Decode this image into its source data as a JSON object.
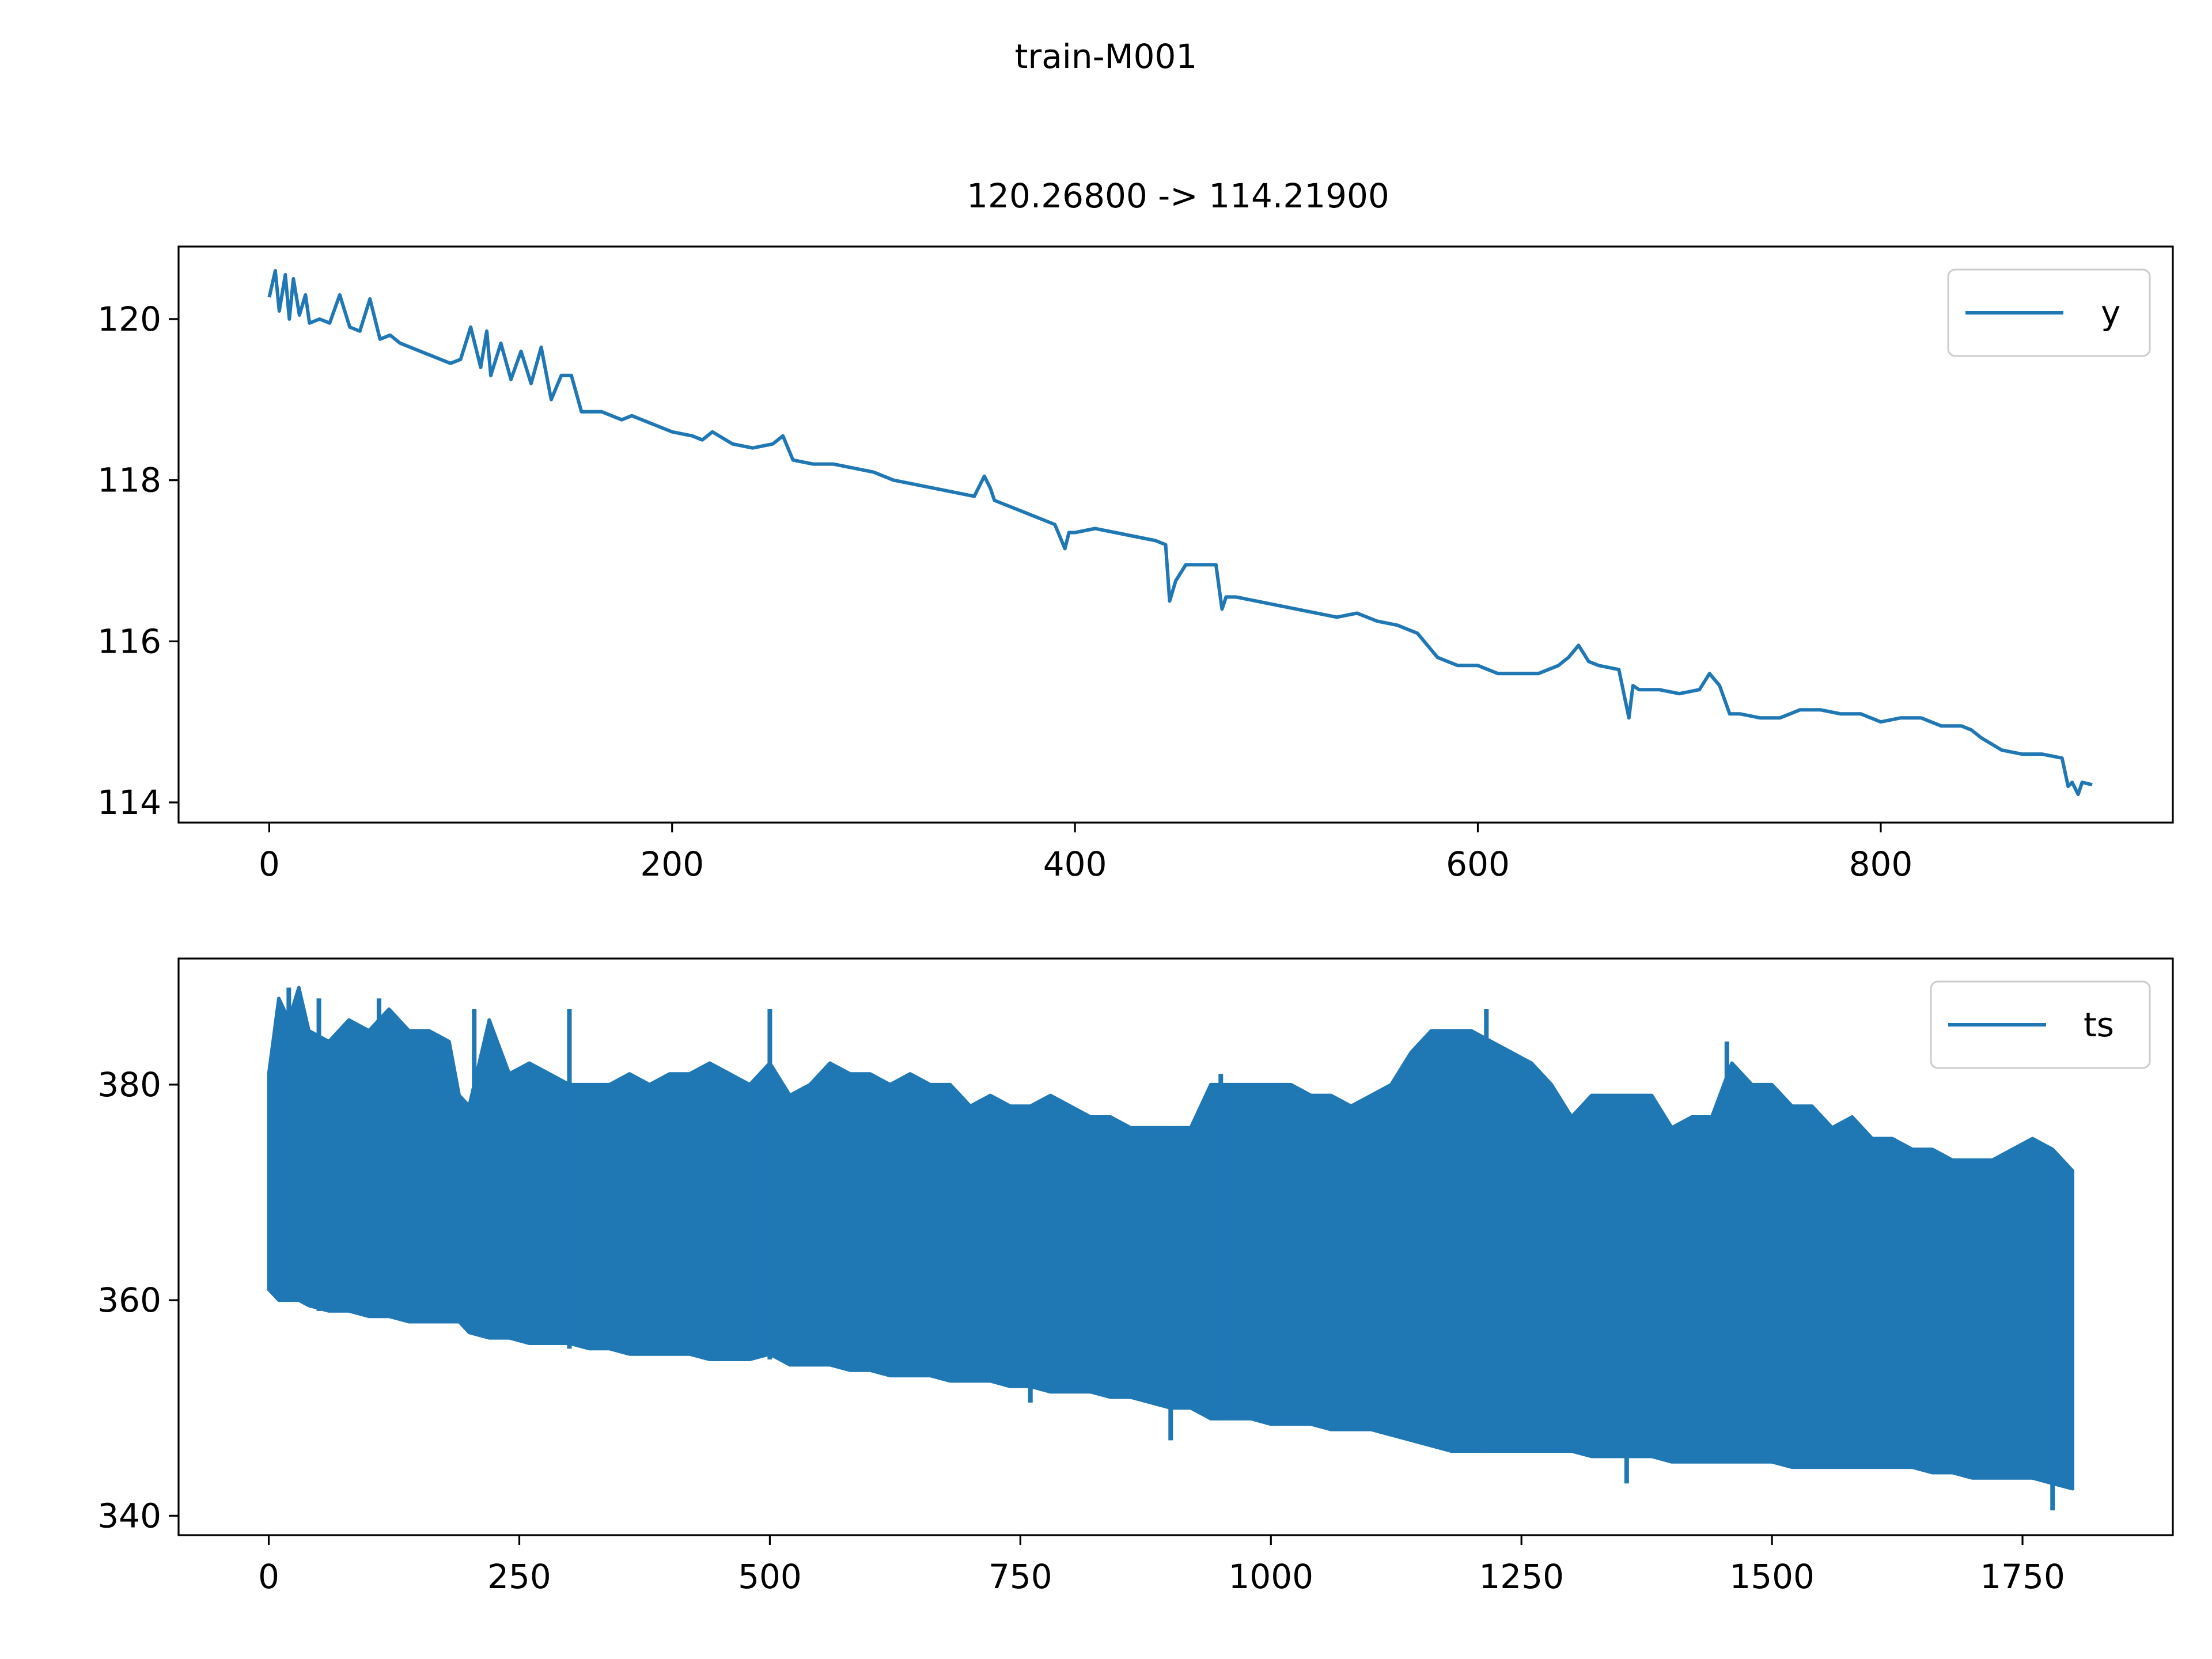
{
  "figure": {
    "suptitle": "train-M001",
    "colors": {
      "line": "#1f77b4",
      "axes": "#000000",
      "legend_border": "#cccccc",
      "background": "#ffffff"
    }
  },
  "chart_data": [
    {
      "type": "line",
      "title": "120.26800 -> 114.21900",
      "xlabel": "",
      "ylabel": "",
      "xlim": [
        -45,
        945
      ],
      "ylim": [
        113.75,
        120.9
      ],
      "xticks": [
        0,
        200,
        400,
        600,
        800
      ],
      "yticks": [
        114,
        116,
        118,
        120
      ],
      "legend": "upper right",
      "grid": false,
      "series": [
        {
          "name": "y",
          "x": [
            0,
            3,
            5,
            8,
            10,
            12,
            15,
            18,
            20,
            25,
            30,
            35,
            40,
            45,
            50,
            55,
            60,
            65,
            70,
            75,
            80,
            85,
            90,
            95,
            100,
            105,
            108,
            110,
            115,
            120,
            125,
            130,
            135,
            140,
            145,
            150,
            155,
            160,
            165,
            170,
            175,
            180,
            190,
            200,
            210,
            215,
            220,
            230,
            240,
            250,
            255,
            260,
            270,
            280,
            290,
            300,
            310,
            320,
            330,
            340,
            350,
            355,
            358,
            360,
            365,
            370,
            380,
            390,
            395,
            397,
            400,
            410,
            420,
            430,
            440,
            445,
            447,
            450,
            455,
            460,
            470,
            473,
            475,
            480,
            490,
            500,
            510,
            520,
            530,
            540,
            550,
            560,
            570,
            580,
            590,
            600,
            610,
            620,
            630,
            640,
            645,
            650,
            655,
            660,
            670,
            675,
            677,
            680,
            690,
            700,
            710,
            715,
            720,
            725,
            730,
            740,
            750,
            760,
            770,
            780,
            790,
            800,
            810,
            820,
            830,
            840,
            845,
            850,
            860,
            870,
            880,
            890,
            893,
            895,
            898,
            900,
            905
          ],
          "values": [
            120.27,
            120.6,
            120.1,
            120.55,
            120.0,
            120.5,
            120.05,
            120.3,
            119.95,
            120.0,
            119.95,
            120.3,
            119.9,
            119.85,
            120.25,
            119.75,
            119.8,
            119.7,
            119.65,
            119.6,
            119.55,
            119.5,
            119.45,
            119.5,
            119.9,
            119.4,
            119.85,
            119.3,
            119.7,
            119.25,
            119.6,
            119.2,
            119.65,
            119.0,
            119.3,
            119.3,
            118.85,
            118.85,
            118.85,
            118.8,
            118.75,
            118.8,
            118.7,
            118.6,
            118.55,
            118.5,
            118.6,
            118.45,
            118.4,
            118.45,
            118.55,
            118.25,
            118.2,
            118.2,
            118.15,
            118.1,
            118.0,
            117.95,
            117.9,
            117.85,
            117.8,
            118.05,
            117.9,
            117.75,
            117.7,
            117.65,
            117.55,
            117.45,
            117.15,
            117.35,
            117.35,
            117.4,
            117.35,
            117.3,
            117.25,
            117.2,
            116.5,
            116.75,
            116.95,
            116.95,
            116.95,
            116.4,
            116.55,
            116.55,
            116.5,
            116.45,
            116.4,
            116.35,
            116.3,
            116.35,
            116.25,
            116.2,
            116.1,
            115.8,
            115.7,
            115.7,
            115.6,
            115.6,
            115.6,
            115.7,
            115.8,
            115.95,
            115.75,
            115.7,
            115.65,
            115.05,
            115.45,
            115.4,
            115.4,
            115.35,
            115.4,
            115.6,
            115.45,
            115.1,
            115.1,
            115.05,
            115.05,
            115.15,
            115.15,
            115.1,
            115.1,
            115.0,
            115.05,
            115.05,
            114.95,
            114.95,
            114.9,
            114.8,
            114.65,
            114.6,
            114.6,
            114.55,
            114.2,
            114.25,
            114.1,
            114.25,
            114.22
          ]
        }
      ]
    },
    {
      "type": "line",
      "title": "",
      "xlabel": "",
      "ylabel": "",
      "xlim": [
        -90,
        1900
      ],
      "ylim": [
        338.2,
        391.7
      ],
      "xticks": [
        0,
        250,
        500,
        750,
        1000,
        1250,
        1500,
        1750
      ],
      "yticks": [
        340,
        360,
        380
      ],
      "legend": "upper right",
      "grid": false,
      "series": [
        {
          "name": "ts",
          "upper_envelope": {
            "x": [
              0,
              10,
              20,
              30,
              40,
              60,
              80,
              100,
              120,
              140,
              160,
              180,
              190,
              200,
              220,
              240,
              260,
              280,
              300,
              320,
              340,
              360,
              380,
              400,
              420,
              440,
              460,
              480,
              500,
              520,
              540,
              560,
              580,
              600,
              620,
              640,
              660,
              680,
              700,
              720,
              740,
              760,
              780,
              800,
              820,
              840,
              860,
              880,
              900,
              920,
              940,
              960,
              980,
              1000,
              1020,
              1040,
              1060,
              1080,
              1100,
              1120,
              1140,
              1160,
              1180,
              1200,
              1220,
              1240,
              1260,
              1280,
              1300,
              1320,
              1340,
              1360,
              1380,
              1400,
              1420,
              1440,
              1460,
              1480,
              1500,
              1520,
              1540,
              1560,
              1580,
              1600,
              1620,
              1640,
              1660,
              1680,
              1700,
              1720,
              1740,
              1760,
              1780,
              1800
            ],
            "values": [
              381,
              388,
              386,
              389,
              385,
              384,
              386,
              385,
              387,
              385,
              385,
              384,
              379,
              378,
              386,
              381,
              382,
              381,
              380,
              380,
              380,
              381,
              380,
              381,
              381,
              382,
              381,
              380,
              382,
              379,
              380,
              382,
              381,
              381,
              380,
              381,
              380,
              380,
              378,
              379,
              378,
              378,
              379,
              378,
              377,
              377,
              376,
              376,
              376,
              376,
              380,
              380,
              380,
              380,
              380,
              379,
              379,
              378,
              379,
              380,
              383,
              385,
              385,
              385,
              384,
              383,
              382,
              380,
              377,
              379,
              379,
              379,
              379,
              376,
              377,
              377,
              382,
              380,
              380,
              378,
              378,
              376,
              377,
              375,
              375,
              374,
              374,
              373,
              373,
              373,
              374,
              375,
              374,
              372
            ]
          },
          "lower_envelope": {
            "x": [
              0,
              10,
              20,
              30,
              40,
              60,
              80,
              100,
              120,
              140,
              160,
              180,
              190,
              200,
              220,
              240,
              260,
              280,
              300,
              320,
              340,
              360,
              380,
              400,
              420,
              440,
              460,
              480,
              500,
              520,
              540,
              560,
              580,
              600,
              620,
              640,
              660,
              680,
              700,
              720,
              740,
              760,
              780,
              800,
              820,
              840,
              860,
              880,
              900,
              920,
              940,
              960,
              980,
              1000,
              1020,
              1040,
              1060,
              1080,
              1100,
              1120,
              1140,
              1160,
              1180,
              1200,
              1220,
              1240,
              1260,
              1280,
              1300,
              1320,
              1340,
              1360,
              1380,
              1400,
              1420,
              1440,
              1460,
              1480,
              1500,
              1520,
              1540,
              1560,
              1580,
              1600,
              1620,
              1640,
              1660,
              1680,
              1700,
              1720,
              1740,
              1760,
              1780,
              1800
            ],
            "values": [
              361,
              360,
              360,
              360,
              359.5,
              359,
              359,
              358.5,
              358.5,
              358,
              358,
              358,
              358,
              357,
              356.5,
              356.5,
              356,
              356,
              356,
              355.5,
              355.5,
              355,
              355,
              355,
              355,
              354.5,
              354.5,
              354.5,
              355,
              354,
              354,
              354,
              353.5,
              353.5,
              353,
              353,
              353,
              352.5,
              352.5,
              352.5,
              352,
              352,
              351.5,
              351.5,
              351.5,
              351,
              351,
              350.5,
              350,
              350,
              349,
              349,
              349,
              348.5,
              348.5,
              348.5,
              348,
              348,
              348,
              347.5,
              347,
              346.5,
              346,
              346,
              346,
              346,
              346,
              346,
              346,
              345.5,
              345.5,
              345.5,
              345.5,
              345,
              345,
              345,
              345,
              345,
              345,
              344.5,
              344.5,
              344.5,
              344.5,
              344.5,
              344.5,
              344.5,
              344,
              344,
              343.5,
              343.5,
              343.5,
              343.5,
              343,
              342.5
            ]
          },
          "spikes": [
            {
              "x": 20,
              "values": [
                389,
                360
              ]
            },
            {
              "x": 50,
              "values": [
                388,
                359
              ]
            },
            {
              "x": 110,
              "values": [
                388,
                358.5
              ]
            },
            {
              "x": 205,
              "values": [
                387,
                357
              ]
            },
            {
              "x": 300,
              "values": [
                387,
                355.5
              ]
            },
            {
              "x": 500,
              "values": [
                387,
                354.5
              ]
            },
            {
              "x": 760,
              "values": [
                378,
                350.5
              ]
            },
            {
              "x": 900,
              "values": [
                376,
                347
              ]
            },
            {
              "x": 950,
              "values": [
                381,
                349
              ]
            },
            {
              "x": 1215,
              "values": [
                387,
                346
              ]
            },
            {
              "x": 1355,
              "values": [
                379,
                343
              ]
            },
            {
              "x": 1455,
              "values": [
                384,
                345
              ]
            },
            {
              "x": 1780,
              "values": [
                373,
                340.5
              ]
            }
          ]
        }
      ]
    }
  ]
}
